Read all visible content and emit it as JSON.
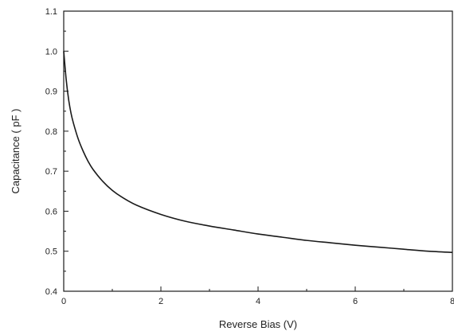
{
  "chart_data": {
    "type": "line",
    "title": "",
    "xlabel": "Reverse Bias (V)",
    "ylabel": "Capacitance ( pF )",
    "xlim": [
      0,
      8
    ],
    "ylim": [
      0.4,
      1.1
    ],
    "x_ticks": [
      "0",
      "2",
      "4",
      "6",
      "8"
    ],
    "y_ticks": [
      "0.4",
      "0.5",
      "0.6",
      "0.7",
      "0.8",
      "0.9",
      "1.0",
      "1.1"
    ],
    "grid": false,
    "legend": "none",
    "series": [
      {
        "color": "#1a1a1a",
        "x": [
          0,
          0.05,
          0.1,
          0.15,
          0.2,
          0.3,
          0.4,
          0.5,
          0.6,
          0.8,
          1.0,
          1.2,
          1.5,
          2.0,
          2.5,
          3.0,
          3.5,
          4.0,
          4.5,
          5.0,
          5.5,
          6.0,
          6.5,
          7.0,
          7.5,
          8.0
        ],
        "y": [
          1.0,
          0.93,
          0.88,
          0.845,
          0.82,
          0.78,
          0.75,
          0.725,
          0.705,
          0.675,
          0.652,
          0.635,
          0.615,
          0.592,
          0.575,
          0.563,
          0.553,
          0.543,
          0.535,
          0.527,
          0.521,
          0.515,
          0.51,
          0.505,
          0.5,
          0.497
        ]
      }
    ]
  }
}
